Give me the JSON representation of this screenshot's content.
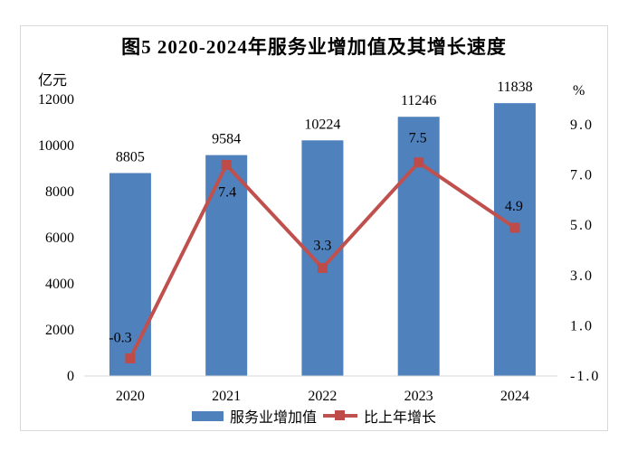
{
  "chart_data": {
    "type": "combo",
    "title": "图5 2020-2024年服务业增加值及其增长速度",
    "categories": [
      "2020",
      "2021",
      "2022",
      "2023",
      "2024"
    ],
    "series": [
      {
        "name": "服务业增加值",
        "type": "bar",
        "axis": "left",
        "color": "#4F81BD",
        "values": [
          8805,
          9584,
          10224,
          11246,
          11838
        ]
      },
      {
        "name": "比上年增长",
        "type": "line",
        "axis": "right",
        "color": "#C0504D",
        "marker_color": "#BE4B48",
        "values": [
          -0.3,
          7.4,
          3.3,
          7.5,
          4.9
        ]
      }
    ],
    "left_axis": {
      "unit": "亿元",
      "min": 0,
      "max": 12000,
      "step": 2000,
      "ticks": [
        0,
        2000,
        4000,
        6000,
        8000,
        10000,
        12000
      ]
    },
    "right_axis": {
      "unit": "%",
      "min": -1.0,
      "max": 9.0,
      "step": 2.0,
      "ticks": [
        -1.0,
        1.0,
        3.0,
        5.0,
        7.0,
        9.0
      ]
    },
    "legend": {
      "position": "bottom",
      "entries": [
        "服务业增加值",
        "比上年增长"
      ]
    },
    "grid": false,
    "colors": {
      "axis_line": "#D9D9D9",
      "frame_border": "#D9D9D9",
      "text": "#000000"
    }
  }
}
